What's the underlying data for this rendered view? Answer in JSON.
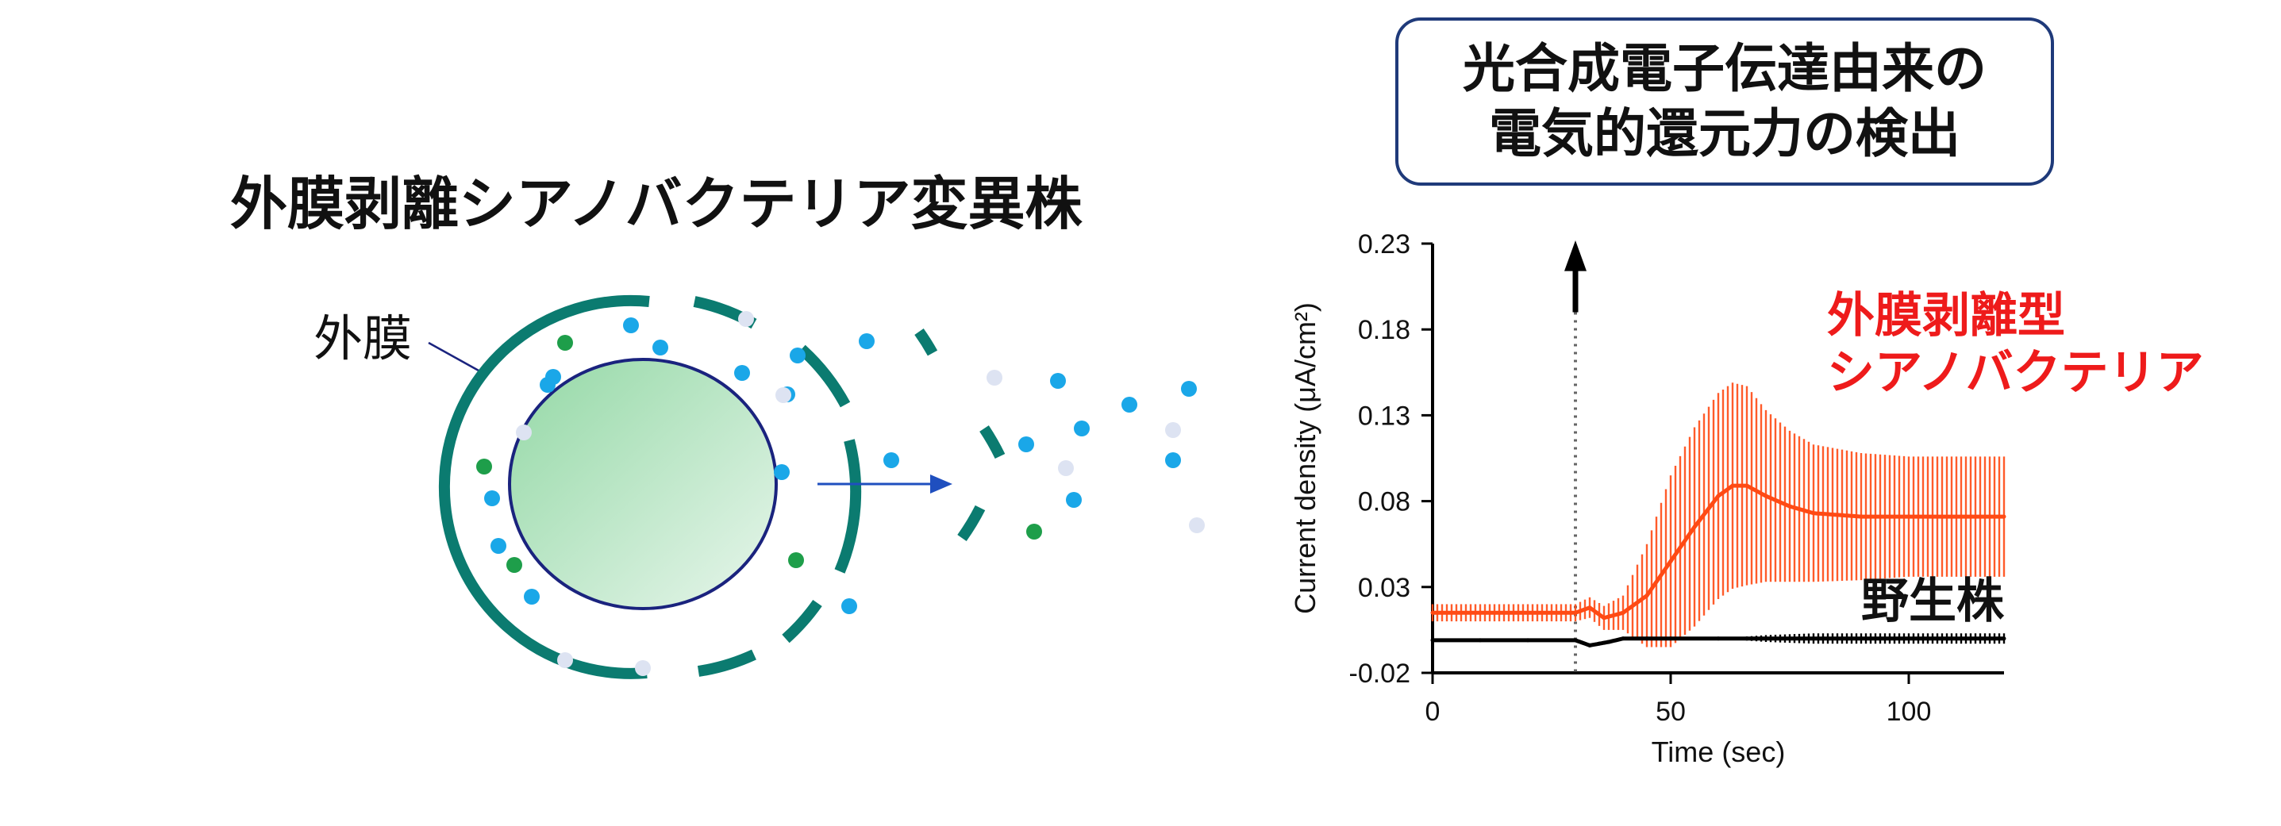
{
  "left_panel": {
    "title": "外膜剥離シアノバクテリア変異株",
    "membrane_label": "外膜"
  },
  "callout": {
    "line1": "光合成電子伝達由来の",
    "line2": "電気的還元力の検出"
  },
  "colors": {
    "membrane": "#0b7b70",
    "cell_fill": "#aee0ba",
    "cell_border": "#1a237e",
    "dot_blue": "#1aa7e8",
    "dot_green": "#1e9e4a",
    "dot_pale": "#dde3f2",
    "arrow": "#1f4fbf",
    "mutant_series": "#ff4a14",
    "wildtype_series": "#000000",
    "mutant_label": "#ee1b1b"
  },
  "chart_data": {
    "type": "line",
    "xlabel": "Time (sec)",
    "ylabel": "Current density (μA/cm²)",
    "xlim": [
      0,
      120
    ],
    "ylim": [
      -0.02,
      0.23
    ],
    "xticks": [
      "0",
      "50",
      "100"
    ],
    "yticks": [
      "0.23",
      "0.18",
      "0.13",
      "0.08",
      "0.03",
      "-0.02"
    ],
    "light_on_time": 30,
    "grid": false,
    "series": [
      {
        "name": "外膜剥離型シアノバクテリア",
        "label_lines": [
          "外膜剥離型",
          "シアノバクテリア"
        ],
        "x": [
          0,
          10,
          20,
          30,
          33,
          36,
          40,
          45,
          50,
          55,
          60,
          63,
          66,
          70,
          75,
          80,
          90,
          100,
          110,
          120
        ],
        "y": [
          0.015,
          0.015,
          0.015,
          0.015,
          0.018,
          0.012,
          0.015,
          0.025,
          0.045,
          0.065,
          0.083,
          0.089,
          0.089,
          0.083,
          0.077,
          0.073,
          0.071,
          0.071,
          0.071,
          0.071
        ],
        "error": [
          0.005,
          0.005,
          0.005,
          0.005,
          0.006,
          0.007,
          0.01,
          0.03,
          0.05,
          0.058,
          0.06,
          0.06,
          0.058,
          0.05,
          0.044,
          0.04,
          0.037,
          0.035,
          0.035,
          0.035
        ]
      },
      {
        "name": "野生株",
        "label_lines": [
          "野生株"
        ],
        "x": [
          0,
          10,
          20,
          30,
          33,
          35,
          37,
          40,
          45,
          50,
          60,
          70,
          80,
          100,
          120
        ],
        "y": [
          -0.001,
          -0.001,
          -0.001,
          -0.001,
          -0.004,
          -0.003,
          -0.002,
          0,
          0,
          0,
          0,
          0,
          0,
          0,
          0
        ],
        "error": [
          0,
          0,
          0,
          0,
          0,
          0,
          0,
          0,
          0,
          0,
          0,
          0.002,
          0.003,
          0.003,
          0.003
        ]
      }
    ]
  }
}
